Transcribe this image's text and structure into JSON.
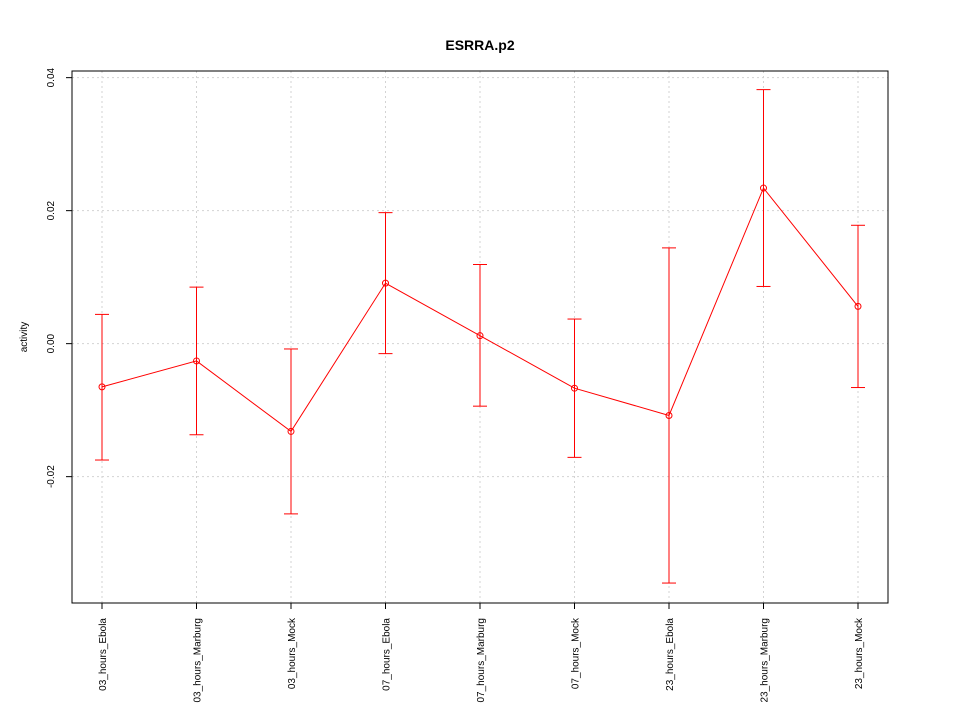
{
  "chart_data": {
    "type": "line",
    "title": "ESRRA.p2",
    "xlabel": "",
    "ylabel": "activity",
    "ylim": [
      -0.039,
      0.041
    ],
    "yticks": [
      -0.02,
      0.0,
      0.02,
      0.04
    ],
    "ytick_labels": [
      "-0.02",
      "0.00",
      "0.02",
      "0.04"
    ],
    "grid": true,
    "categories": [
      "03_hours_Ebola",
      "03_hours_Marburg",
      "03_hours_Mock",
      "07_hours_Ebola",
      "07_hours_Marburg",
      "07_hours_Mock",
      "23_hours_Ebola",
      "23_hours_Marburg",
      "23_hours_Mock"
    ],
    "series": [
      {
        "color": "#ff0000",
        "values": [
          -0.0065,
          -0.0026,
          -0.0132,
          0.0091,
          0.0012,
          -0.0067,
          -0.0108,
          0.0234,
          0.0056
        ],
        "upper": [
          0.0044,
          0.0085,
          -0.0008,
          0.0197,
          0.0119,
          0.0037,
          0.0144,
          0.0382,
          0.0178
        ],
        "lower": [
          -0.0175,
          -0.0137,
          -0.0256,
          -0.0015,
          -0.0094,
          -0.0171,
          -0.036,
          0.0086,
          -0.0066
        ]
      }
    ]
  }
}
